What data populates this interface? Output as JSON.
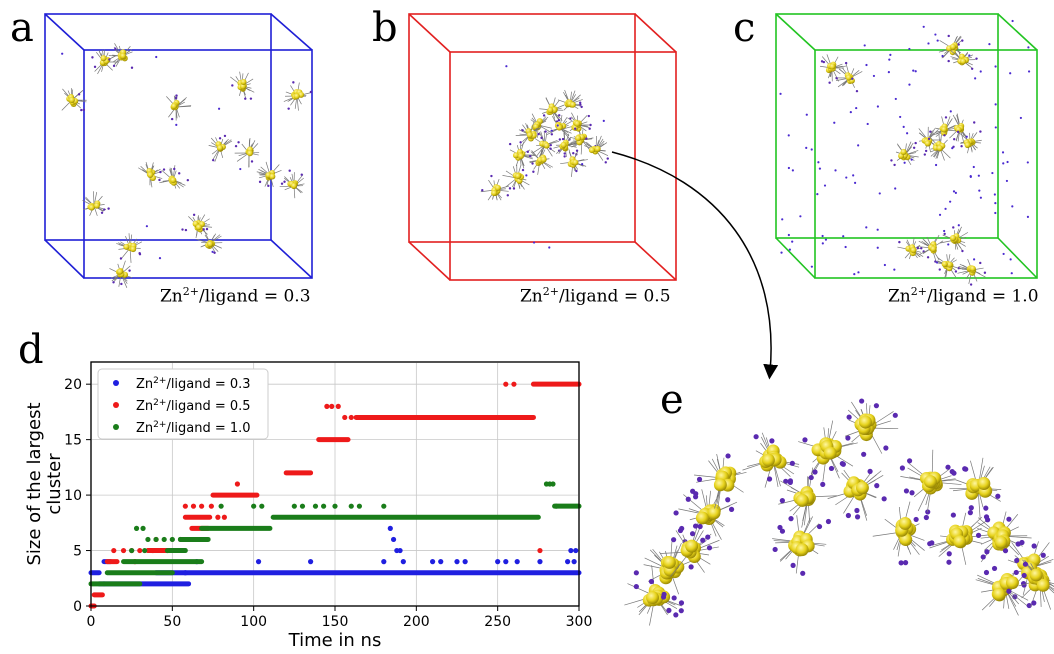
{
  "panels": {
    "a": {
      "label": "a",
      "caption_prefix": "Zn",
      "caption_sup": "2+",
      "caption_suffix": "/ligand = 0.3",
      "color": "#1f1fd6"
    },
    "b": {
      "label": "b",
      "caption_prefix": "Zn",
      "caption_sup": "2+",
      "caption_suffix": "/ligand = 0.5",
      "color": "#e22020"
    },
    "c": {
      "label": "c",
      "caption_prefix": "Zn",
      "caption_sup": "2+",
      "caption_suffix": "/ligand = 1.0",
      "color": "#22c422"
    },
    "d": {
      "label": "d"
    },
    "e": {
      "label": "e"
    }
  },
  "chart_data": {
    "type": "scatter",
    "xlabel": "Time in ns",
    "ylabel_line1": "Size of the largest",
    "ylabel_line2": "cluster",
    "xlim": [
      0,
      300
    ],
    "ylim": [
      0,
      22
    ],
    "xticks": [
      0,
      50,
      100,
      150,
      200,
      250,
      300
    ],
    "yticks": [
      0,
      5,
      10,
      15,
      20
    ],
    "grid": true,
    "legend_position": "top-left",
    "series": [
      {
        "name_prefix": "Zn",
        "name_sup": "2+",
        "name_suffix": "/ligand = 0.3",
        "color": "#1f1fe0",
        "segments": [
          [
            0,
            5,
            3
          ],
          [
            5,
            8,
            2
          ],
          [
            8,
            60,
            2
          ],
          [
            40,
            300,
            3
          ],
          [
            8,
            12,
            4
          ]
        ],
        "points": [
          [
            58,
            3
          ],
          [
            65,
            4
          ],
          [
            103,
            4
          ],
          [
            135,
            4
          ],
          [
            180,
            4
          ],
          [
            184,
            7
          ],
          [
            186,
            6
          ],
          [
            188,
            5
          ],
          [
            190,
            5
          ],
          [
            192,
            4
          ],
          [
            210,
            4
          ],
          [
            215,
            4
          ],
          [
            225,
            4
          ],
          [
            230,
            4
          ],
          [
            250,
            4
          ],
          [
            255,
            4
          ],
          [
            262,
            4
          ],
          [
            276,
            4
          ],
          [
            293,
            4
          ],
          [
            295,
            5
          ],
          [
            297,
            4
          ],
          [
            298,
            5
          ]
        ]
      },
      {
        "name_prefix": "Zn",
        "name_sup": "2+",
        "name_suffix": "/ligand = 0.5",
        "color": "#ee1a1a",
        "segments": [
          [
            0,
            2,
            0
          ],
          [
            2,
            7,
            1
          ],
          [
            10,
            16,
            4
          ],
          [
            35,
            55,
            5
          ],
          [
            58,
            73,
            8
          ],
          [
            62,
            72,
            7
          ],
          [
            75,
            102,
            10
          ],
          [
            120,
            135,
            12
          ],
          [
            140,
            158,
            15
          ],
          [
            163,
            272,
            17
          ],
          [
            272,
            300,
            20
          ]
        ],
        "points": [
          [
            14,
            5
          ],
          [
            20,
            5
          ],
          [
            25,
            5
          ],
          [
            27,
            4
          ],
          [
            30,
            5
          ],
          [
            38,
            5
          ],
          [
            40,
            6
          ],
          [
            58,
            9
          ],
          [
            63,
            9
          ],
          [
            68,
            9
          ],
          [
            74,
            9
          ],
          [
            78,
            8
          ],
          [
            82,
            8
          ],
          [
            90,
            11
          ],
          [
            145,
            18
          ],
          [
            148,
            18
          ],
          [
            152,
            18
          ],
          [
            156,
            17
          ],
          [
            160,
            17
          ],
          [
            255,
            20
          ],
          [
            260,
            20
          ],
          [
            276,
            5
          ]
        ]
      },
      {
        "name_prefix": "Zn",
        "name_sup": "2+",
        "name_suffix": "/ligand = 1.0",
        "color": "#1a7d1a",
        "segments": [
          [
            0,
            30,
            2
          ],
          [
            10,
            50,
            3
          ],
          [
            20,
            68,
            4
          ],
          [
            48,
            58,
            5
          ],
          [
            55,
            72,
            6
          ],
          [
            68,
            110,
            7
          ],
          [
            112,
            275,
            8
          ],
          [
            285,
            300,
            9
          ]
        ],
        "points": [
          [
            25,
            5
          ],
          [
            28,
            7
          ],
          [
            32,
            7
          ],
          [
            33,
            5
          ],
          [
            35,
            6
          ],
          [
            40,
            6
          ],
          [
            45,
            6
          ],
          [
            47,
            5
          ],
          [
            50,
            6
          ],
          [
            55,
            6
          ],
          [
            80,
            9
          ],
          [
            100,
            9
          ],
          [
            105,
            9
          ],
          [
            125,
            9
          ],
          [
            130,
            9
          ],
          [
            138,
            9
          ],
          [
            143,
            9
          ],
          [
            150,
            9
          ],
          [
            160,
            9
          ],
          [
            165,
            9
          ],
          [
            180,
            9
          ],
          [
            280,
            11
          ],
          [
            282,
            11
          ],
          [
            284,
            11
          ],
          [
            286,
            9
          ]
        ]
      }
    ]
  }
}
